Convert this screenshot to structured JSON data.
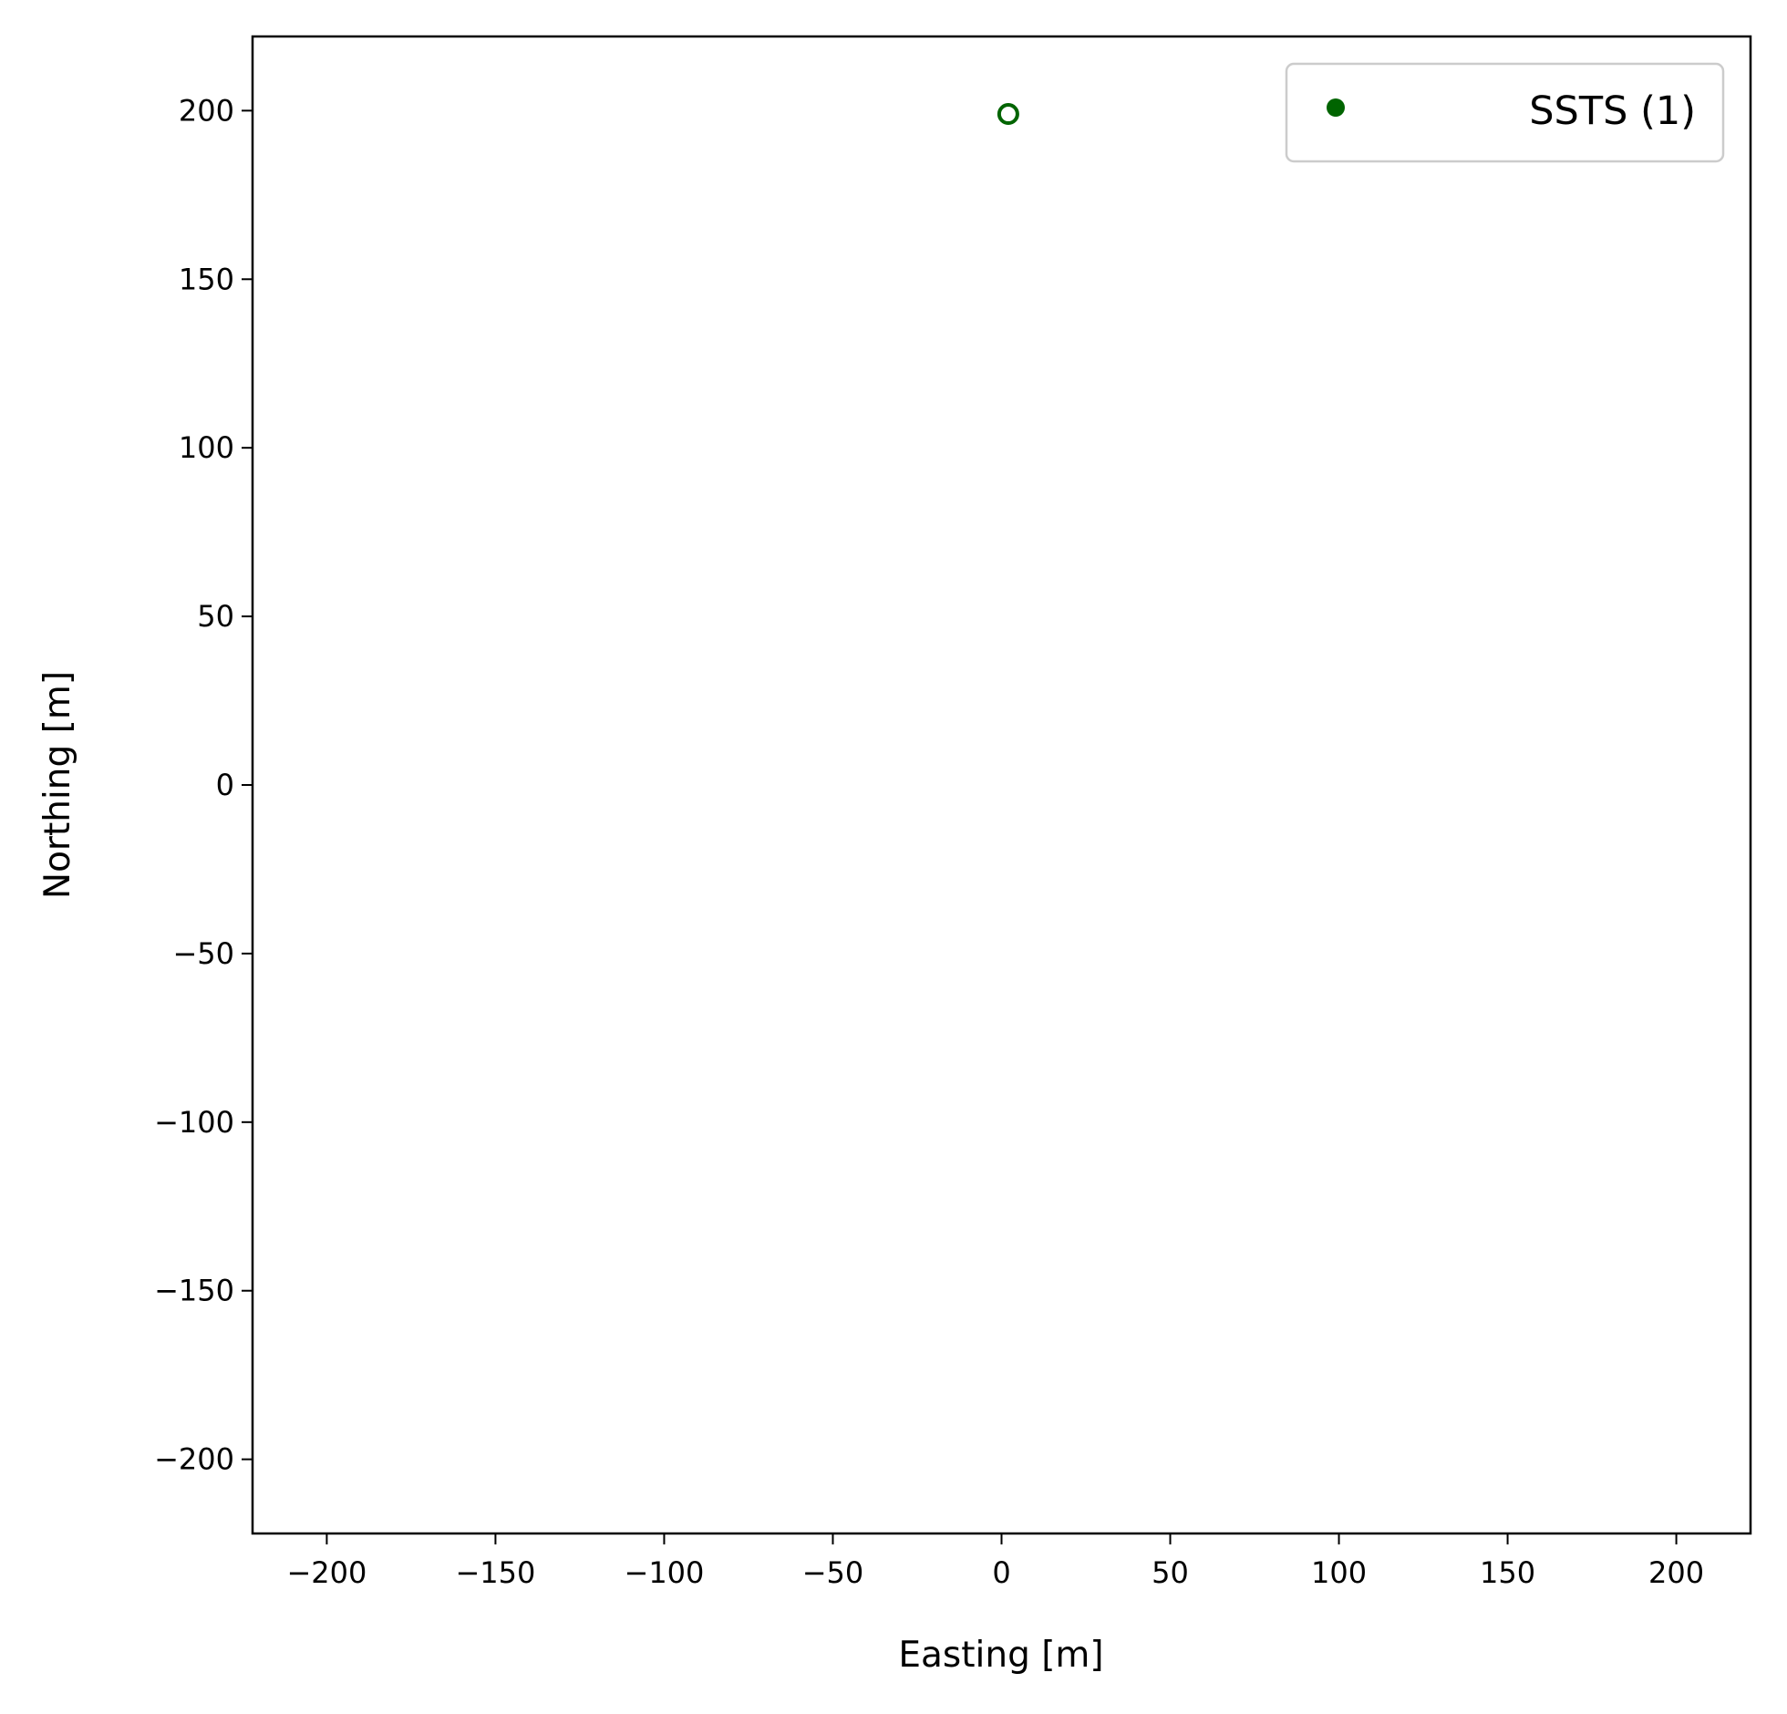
{
  "chart_data": {
    "type": "scatter",
    "title": "",
    "xlabel": "Easting [m]",
    "ylabel": "Northing [m]",
    "xlim": [
      -222,
      222
    ],
    "ylim": [
      -222,
      222
    ],
    "xticks": [
      -200,
      -150,
      -100,
      -50,
      0,
      50,
      100,
      150,
      200
    ],
    "yticks": [
      -200,
      -150,
      -100,
      -50,
      0,
      50,
      100,
      150,
      200
    ],
    "xtick_labels": [
      "−200",
      "−150",
      "−100",
      "−50",
      "0",
      "50",
      "100",
      "150",
      "200"
    ],
    "ytick_labels": [
      "−200",
      "−150",
      "−100",
      "−50",
      "0",
      "50",
      "100",
      "150",
      "200"
    ],
    "grid": false,
    "legend_position": "top-right",
    "series": [
      {
        "name": "SSTS (1)",
        "color": "#006400",
        "marker": "hollow-circle",
        "points": [
          {
            "x": 2,
            "y": 199
          }
        ]
      }
    ]
  }
}
